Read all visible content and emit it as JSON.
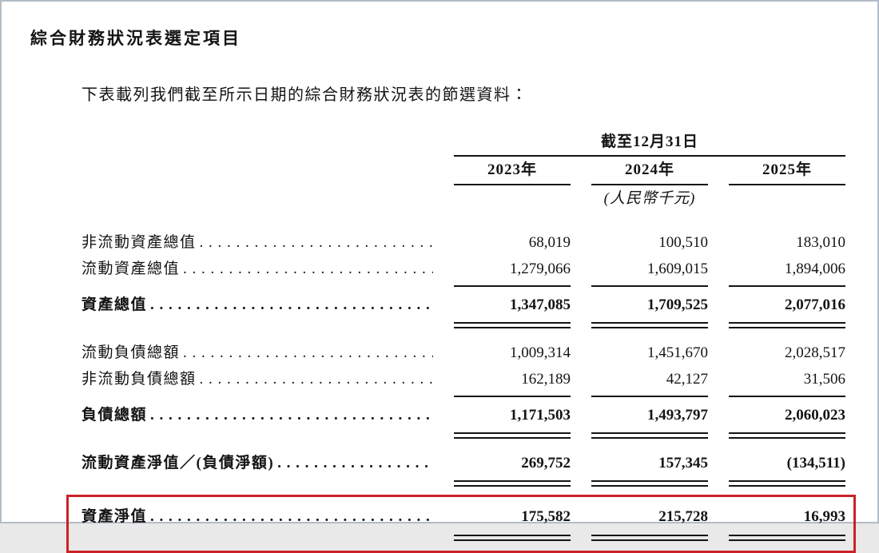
{
  "page": {
    "title": "綜合財務狀況表選定項目",
    "intro": "下表載列我們截至所示日期的綜合財務狀況表的節選資料："
  },
  "table": {
    "period_header": "截至12月31日",
    "unit_note": "(人民幣千元)",
    "columns": [
      "2023年",
      "2024年",
      "2025年"
    ],
    "rows": [
      {
        "label": "非流動資產總值",
        "values": [
          "68,019",
          "100,510",
          "183,010"
        ]
      },
      {
        "label": "流動資產總值",
        "values": [
          "1,279,066",
          "1,609,015",
          "1,894,006"
        ]
      },
      {
        "label": "資產總值",
        "values": [
          "1,347,085",
          "1,709,525",
          "2,077,016"
        ]
      },
      {
        "label": "流動負債總額",
        "values": [
          "1,009,314",
          "1,451,670",
          "2,028,517"
        ]
      },
      {
        "label": "非流動負債總額",
        "values": [
          "162,189",
          "42,127",
          "31,506"
        ]
      },
      {
        "label": "負債總額",
        "values": [
          "1,171,503",
          "1,493,797",
          "2,060,023"
        ]
      },
      {
        "label": "流動資產淨值／(負債淨額)",
        "values": [
          "269,752",
          "157,345",
          "(134,511)"
        ]
      },
      {
        "label": "資產淨值",
        "values": [
          "175,582",
          "215,728",
          "16,993"
        ]
      }
    ],
    "highlight_color": "#cc2127"
  }
}
